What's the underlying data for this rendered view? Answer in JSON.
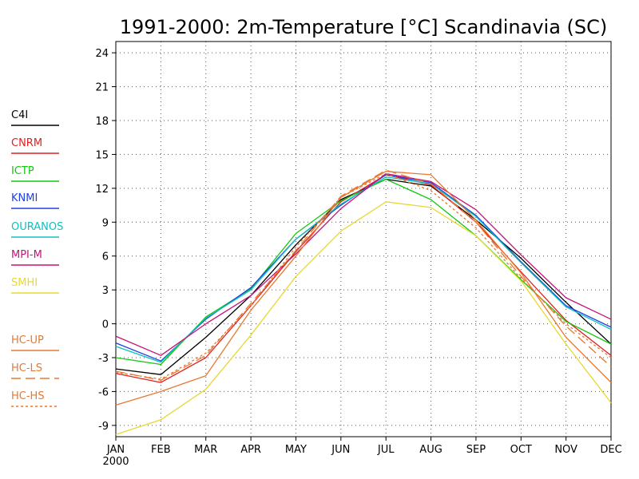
{
  "chart_data": {
    "type": "line",
    "title": "1991-2000: 2m-Temperature [°C] Scandinavia (SC)",
    "xlabel": "",
    "ylabel": "",
    "categories": [
      "JAN",
      "FEB",
      "MAR",
      "APR",
      "MAY",
      "JUN",
      "JUL",
      "AUG",
      "SEP",
      "OCT",
      "NOV",
      "DEC"
    ],
    "x_sublabel": "2000",
    "ylim": [
      -10,
      25
    ],
    "yticks": [
      -9,
      -6,
      -3,
      0,
      3,
      6,
      9,
      12,
      15,
      18,
      21,
      24
    ],
    "grid": true,
    "legend_position": "left",
    "series": [
      {
        "name": "C4I",
        "color": "#000000",
        "dash": "solid",
        "values": [
          -4.0,
          -4.5,
          -1.2,
          2.5,
          7.0,
          11.0,
          12.8,
          12.2,
          9.2,
          5.8,
          1.9,
          -1.8
        ]
      },
      {
        "name": "CNRM",
        "color": "#e02020",
        "dash": "solid",
        "values": [
          -4.4,
          -5.2,
          -3.0,
          1.6,
          6.4,
          10.8,
          13.2,
          12.3,
          9.0,
          4.6,
          0.3,
          -2.8
        ]
      },
      {
        "name": "ICTP",
        "color": "#10c810",
        "dash": "solid",
        "values": [
          -3.0,
          -3.6,
          0.6,
          3.1,
          8.0,
          10.9,
          12.8,
          11.0,
          7.8,
          3.9,
          0.2,
          -1.8
        ]
      },
      {
        "name": "KNMI",
        "color": "#2040e0",
        "dash": "solid",
        "values": [
          -1.7,
          -3.3,
          0.4,
          3.2,
          7.5,
          10.5,
          13.2,
          12.5,
          9.6,
          5.5,
          1.6,
          -0.3
        ]
      },
      {
        "name": "OURANOS",
        "color": "#10c0c0",
        "dash": "solid",
        "values": [
          -2.0,
          -3.4,
          0.5,
          3.0,
          7.5,
          10.6,
          13.0,
          12.4,
          9.5,
          5.4,
          1.5,
          -0.5
        ]
      },
      {
        "name": "MPI-M",
        "color": "#c81078",
        "dash": "solid",
        "values": [
          -1.1,
          -2.8,
          0.0,
          2.5,
          6.2,
          10.2,
          13.3,
          12.6,
          10.1,
          6.1,
          2.3,
          0.4
        ]
      },
      {
        "name": "SMHI",
        "color": "#e8d830",
        "dash": "solid",
        "values": [
          -9.8,
          -8.5,
          -5.8,
          -1.0,
          4.2,
          8.2,
          10.8,
          10.3,
          7.8,
          3.8,
          -1.8,
          -7.0
        ]
      },
      {
        "name": "HC-UP",
        "color": "#e87830",
        "dash": "solid",
        "values": [
          -7.2,
          -6.0,
          -4.6,
          1.2,
          6.0,
          11.2,
          13.5,
          13.2,
          9.2,
          4.5,
          -1.2,
          -5.2
        ]
      },
      {
        "name": "HC-LS",
        "color": "#e87830",
        "dash": "long",
        "values": [
          -4.2,
          -5.0,
          -2.8,
          1.8,
          6.5,
          11.3,
          13.6,
          12.4,
          9.0,
          4.2,
          -0.2,
          -3.8
        ]
      },
      {
        "name": "HC-HS",
        "color": "#e87830",
        "dash": "short",
        "values": [
          -4.3,
          -4.9,
          -2.6,
          1.6,
          6.8,
          11.2,
          13.3,
          11.8,
          8.5,
          4.0,
          0.0,
          -3.0
        ]
      }
    ]
  }
}
